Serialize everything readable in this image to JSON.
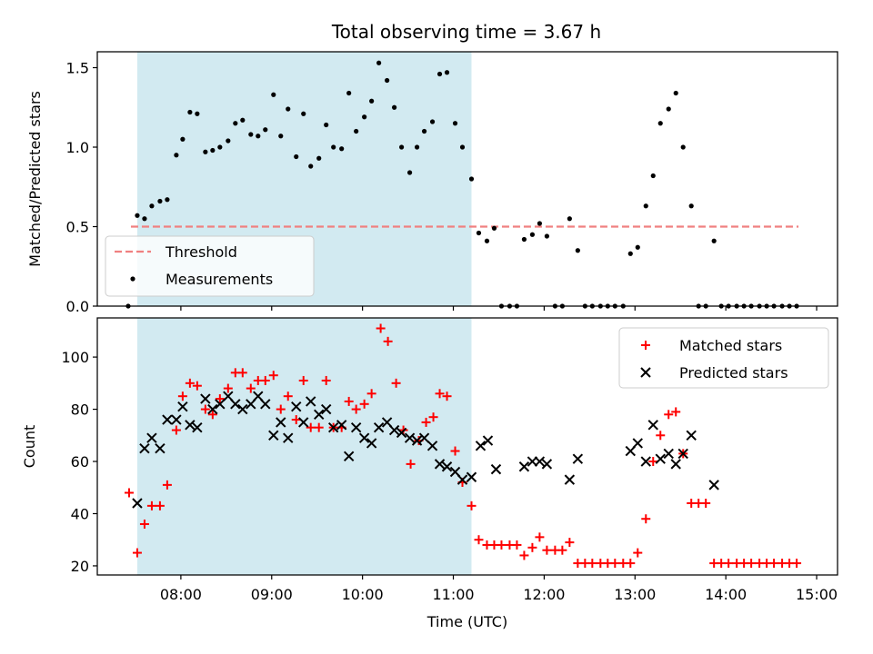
{
  "title": "Total observing time = 3.67 h",
  "colors": {
    "span": "#add8e6",
    "threshold": "#f08080",
    "measurement": "#000000",
    "matched": "#ff0000",
    "predicted": "#000000"
  },
  "chart_data": [
    {
      "type": "scatter",
      "ylabel": "Matched/Predicted stars",
      "xlim": [
        7.08,
        15.23
      ],
      "ylim": [
        0,
        1.6
      ],
      "yticks": [
        0.0,
        0.5,
        1.0,
        1.5
      ],
      "ytick_labels": [
        "0.0",
        "0.5",
        "1.0",
        "1.5"
      ],
      "observing_window_x": [
        7.52,
        11.2
      ],
      "threshold": {
        "name": "Threshold",
        "value": 0.5,
        "x": [
          7.45,
          14.8
        ]
      },
      "legend_position": "lower-left",
      "series": [
        {
          "name": "Measurements",
          "x": [
            7.42,
            7.52,
            7.6,
            7.68,
            7.77,
            7.85,
            7.95,
            8.02,
            8.1,
            8.18,
            8.27,
            8.35,
            8.43,
            8.52,
            8.6,
            8.68,
            8.77,
            8.85,
            8.93,
            9.02,
            9.1,
            9.18,
            9.27,
            9.35,
            9.43,
            9.52,
            9.6,
            9.68,
            9.77,
            9.85,
            9.93,
            10.02,
            10.1,
            10.18,
            10.27,
            10.35,
            10.43,
            10.52,
            10.6,
            10.68,
            10.77,
            10.85,
            10.93,
            11.02,
            11.1,
            11.2,
            11.28,
            11.37,
            11.45,
            11.53,
            11.62,
            11.7,
            11.78,
            11.87,
            11.95,
            12.03,
            12.12,
            12.2,
            12.28,
            12.37,
            12.45,
            12.53,
            12.62,
            12.7,
            12.78,
            12.87,
            12.95,
            13.03,
            13.12,
            13.2,
            13.28,
            13.37,
            13.45,
            13.53,
            13.62,
            13.7,
            13.78,
            13.87,
            13.95,
            14.03,
            14.12,
            14.2,
            14.28,
            14.37,
            14.45,
            14.53,
            14.62,
            14.7,
            14.78
          ],
          "y": [
            0.0,
            0.57,
            0.55,
            0.63,
            0.66,
            0.67,
            0.95,
            1.05,
            1.22,
            1.21,
            0.97,
            0.98,
            1.0,
            1.04,
            1.15,
            1.17,
            1.08,
            1.07,
            1.11,
            1.33,
            1.07,
            1.24,
            0.94,
            1.21,
            0.88,
            0.93,
            1.14,
            1.0,
            0.99,
            1.34,
            1.1,
            1.19,
            1.29,
            1.53,
            1.42,
            1.25,
            1.0,
            0.84,
            1.0,
            1.1,
            1.16,
            1.46,
            1.47,
            1.15,
            1.0,
            0.8,
            0.46,
            0.41,
            0.49,
            0.0,
            0.0,
            0.0,
            0.42,
            0.45,
            0.52,
            0.44,
            0.0,
            0.0,
            0.55,
            0.35,
            0.0,
            0.0,
            0.0,
            0.0,
            0.0,
            0.0,
            0.33,
            0.37,
            0.63,
            0.82,
            1.15,
            1.24,
            1.34,
            1.0,
            0.63,
            0.0,
            0.0,
            0.41,
            0.0,
            0.0,
            0.0,
            0.0,
            0.0,
            0.0,
            0.0,
            0.0,
            0.0,
            0.0,
            0.0
          ]
        }
      ]
    },
    {
      "type": "scatter",
      "ylabel": "Count",
      "xlabel": "Time (UTC)",
      "xlim": [
        7.08,
        15.23
      ],
      "ylim": [
        16.5,
        115
      ],
      "yticks": [
        20,
        40,
        60,
        80,
        100
      ],
      "ytick_labels": [
        "20",
        "40",
        "60",
        "80",
        "100"
      ],
      "xticks": [
        8,
        9,
        10,
        11,
        12,
        13,
        14,
        15
      ],
      "xtick_labels": [
        "08:00",
        "09:00",
        "10:00",
        "11:00",
        "12:00",
        "13:00",
        "14:00",
        "15:00"
      ],
      "observing_window_x": [
        7.52,
        11.2
      ],
      "legend_position": "upper-right",
      "series": [
        {
          "name": "Matched stars",
          "marker": "+",
          "x": [
            7.43,
            7.52,
            7.6,
            7.68,
            7.77,
            7.85,
            7.95,
            8.02,
            8.1,
            8.18,
            8.27,
            8.35,
            8.43,
            8.52,
            8.6,
            8.68,
            8.77,
            8.85,
            8.93,
            9.02,
            9.1,
            9.18,
            9.27,
            9.35,
            9.43,
            9.52,
            9.6,
            9.68,
            9.77,
            9.85,
            9.93,
            10.02,
            10.1,
            10.2,
            10.28,
            10.37,
            10.45,
            10.53,
            10.62,
            10.7,
            10.78,
            10.85,
            10.93,
            11.02,
            11.1,
            11.2,
            11.28,
            11.37,
            11.45,
            11.53,
            11.62,
            11.7,
            11.78,
            11.87,
            11.95,
            12.03,
            12.12,
            12.2,
            12.28,
            12.37,
            12.45,
            12.53,
            12.62,
            12.7,
            12.78,
            12.87,
            12.95,
            13.03,
            13.12,
            13.2,
            13.28,
            13.37,
            13.45,
            13.53,
            13.62,
            13.7,
            13.78,
            13.87,
            13.95,
            14.03,
            14.12,
            14.2,
            14.28,
            14.37,
            14.45,
            14.53,
            14.62,
            14.7,
            14.78
          ],
          "y": [
            48,
            25,
            36,
            43,
            43,
            51,
            72,
            85,
            90,
            89,
            80,
            78,
            84,
            88,
            94,
            94,
            88,
            91,
            91,
            93,
            80,
            85,
            76,
            91,
            73,
            73,
            91,
            73,
            73,
            83,
            80,
            82,
            86,
            111,
            106,
            90,
            72,
            59,
            68,
            75,
            77,
            86,
            85,
            64,
            52,
            43,
            30,
            28,
            28,
            28,
            28,
            28,
            24,
            27,
            31,
            26,
            26,
            26,
            29,
            21,
            21,
            21,
            21,
            21,
            21,
            21,
            21,
            25,
            38,
            60,
            70,
            78,
            79,
            63,
            44,
            44,
            44,
            21,
            21,
            21,
            21,
            21,
            21,
            21,
            21,
            21,
            21,
            21,
            21
          ]
        },
        {
          "name": "Predicted stars",
          "marker": "x",
          "x": [
            7.52,
            7.6,
            7.68,
            7.77,
            7.85,
            7.95,
            8.02,
            8.1,
            8.18,
            8.27,
            8.35,
            8.43,
            8.52,
            8.6,
            8.68,
            8.77,
            8.85,
            8.93,
            9.02,
            9.1,
            9.18,
            9.27,
            9.35,
            9.43,
            9.52,
            9.6,
            9.68,
            9.77,
            9.85,
            9.93,
            10.02,
            10.1,
            10.18,
            10.27,
            10.35,
            10.43,
            10.52,
            10.6,
            10.68,
            10.77,
            10.85,
            10.93,
            11.02,
            11.1,
            11.2,
            11.3,
            11.38,
            11.47,
            11.78,
            11.87,
            11.95,
            12.03,
            12.28,
            12.37,
            12.95,
            13.03,
            13.12,
            13.2,
            13.28,
            13.37,
            13.45,
            13.53,
            13.62,
            13.87
          ],
          "y": [
            44,
            65,
            69,
            65,
            76,
            76,
            81,
            74,
            73,
            84,
            80,
            82,
            85,
            82,
            80,
            82,
            85,
            82,
            70,
            75,
            69,
            81,
            75,
            83,
            78,
            80,
            73,
            74,
            62,
            73,
            69,
            67,
            73,
            75,
            72,
            71,
            69,
            68,
            69,
            66,
            59,
            58,
            56,
            53,
            54,
            66,
            68,
            57,
            58,
            60,
            60,
            59,
            53,
            61,
            64,
            67,
            60,
            74,
            61,
            63,
            59,
            63,
            70,
            51
          ]
        }
      ]
    }
  ]
}
